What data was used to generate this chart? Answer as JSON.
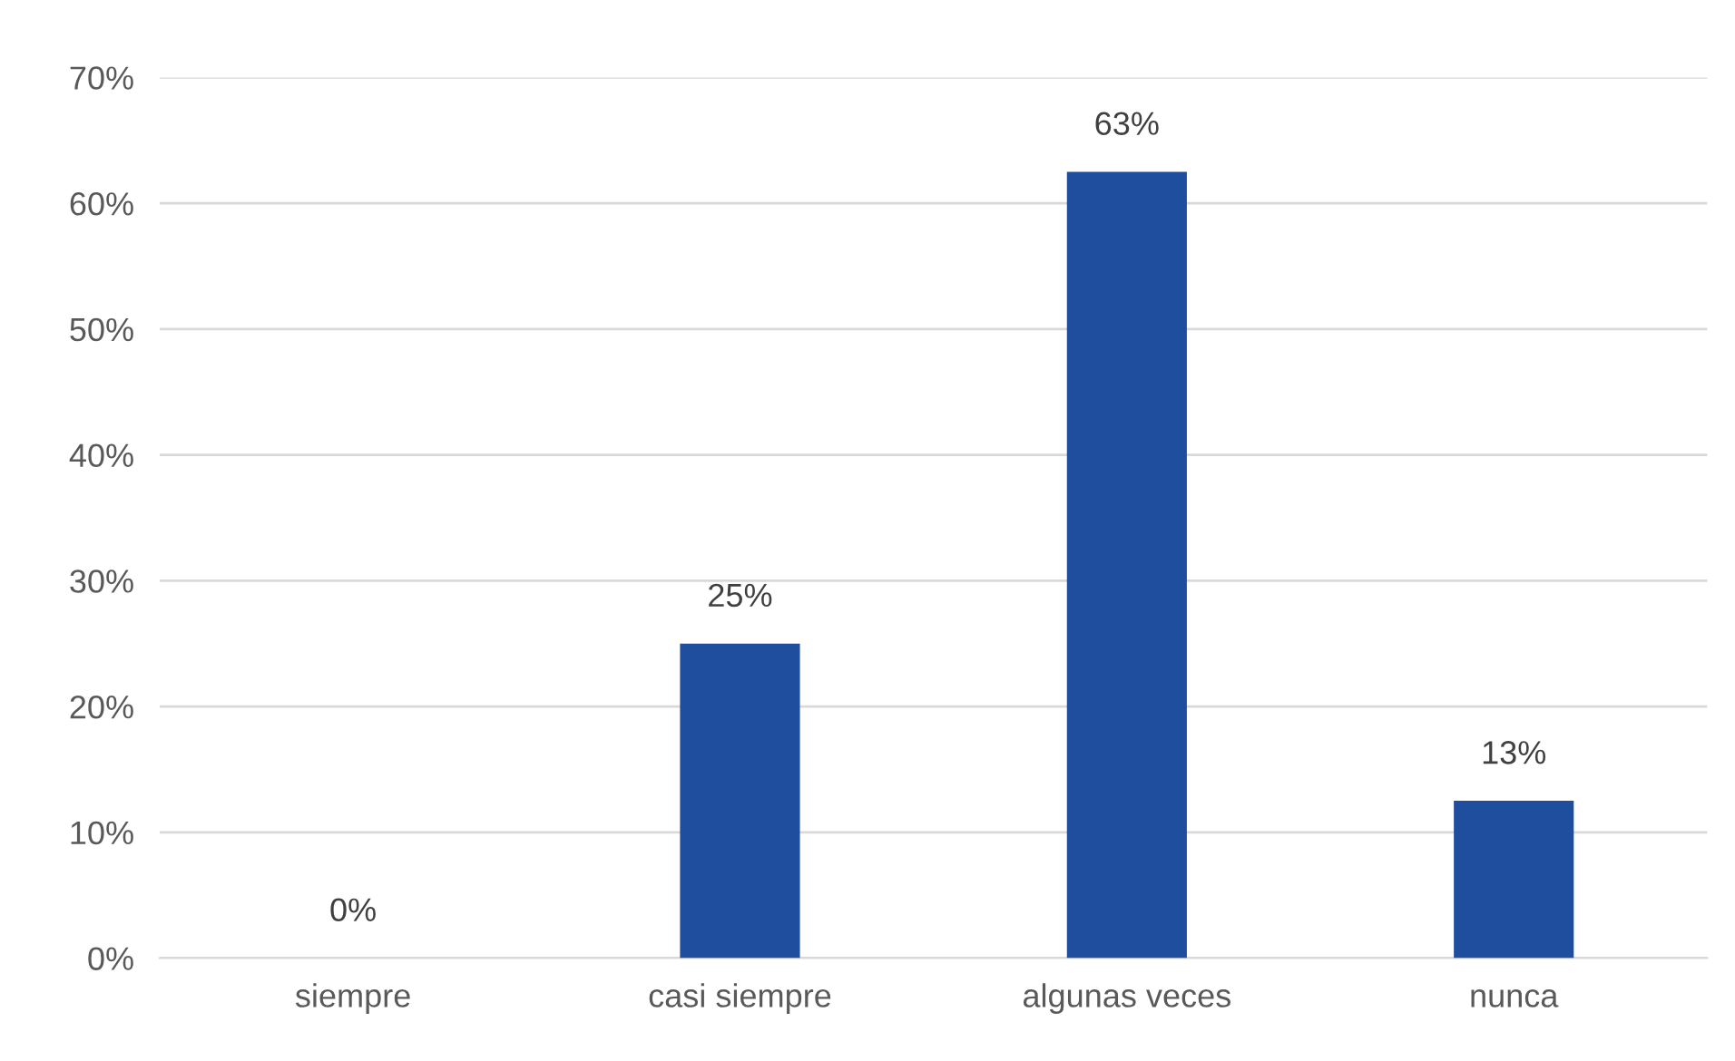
{
  "chart_data": {
    "type": "bar",
    "categories": [
      "siempre",
      "casi siempre",
      "algunas veces",
      "nunca"
    ],
    "values": [
      0,
      25,
      62.5,
      12.5
    ],
    "value_labels": [
      "0%",
      "25%",
      "63%",
      "13%"
    ],
    "color": "#1f4e9f",
    "ylim": [
      0,
      70
    ],
    "yticks": [
      {
        "value": 0,
        "label": "0%"
      },
      {
        "value": 10,
        "label": "10%"
      },
      {
        "value": 20,
        "label": "20%"
      },
      {
        "value": 30,
        "label": "30%"
      },
      {
        "value": 40,
        "label": "40%"
      },
      {
        "value": 50,
        "label": "50%"
      },
      {
        "value": 60,
        "label": "60%"
      },
      {
        "value": 70,
        "label": "70%"
      }
    ],
    "grid": "y"
  }
}
